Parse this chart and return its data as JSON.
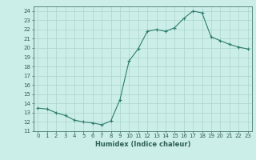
{
  "x": [
    0,
    1,
    2,
    3,
    4,
    5,
    6,
    7,
    8,
    9,
    10,
    11,
    12,
    13,
    14,
    15,
    16,
    17,
    18,
    19,
    20,
    21,
    22,
    23
  ],
  "y": [
    13.5,
    13.4,
    13.0,
    12.7,
    12.2,
    12.0,
    11.9,
    11.7,
    12.1,
    14.4,
    18.6,
    19.9,
    21.8,
    22.0,
    21.8,
    22.2,
    23.2,
    24.0,
    23.8,
    21.2,
    20.8,
    20.4,
    20.1,
    19.9
  ],
  "line_color": "#2e7d6e",
  "marker": "+",
  "marker_size": 3,
  "bg_color": "#cceee8",
  "grid_color": "#aad4ce",
  "xlabel": "Humidex (Indice chaleur)",
  "xlim": [
    -0.5,
    23.5
  ],
  "ylim": [
    11,
    24.5
  ],
  "yticks": [
    11,
    12,
    13,
    14,
    15,
    16,
    17,
    18,
    19,
    20,
    21,
    22,
    23,
    24
  ],
  "xticks": [
    0,
    1,
    2,
    3,
    4,
    5,
    6,
    7,
    8,
    9,
    10,
    11,
    12,
    13,
    14,
    15,
    16,
    17,
    18,
    19,
    20,
    21,
    22,
    23
  ],
  "tick_color": "#2e5f57",
  "spine_color": "#2e5f57"
}
